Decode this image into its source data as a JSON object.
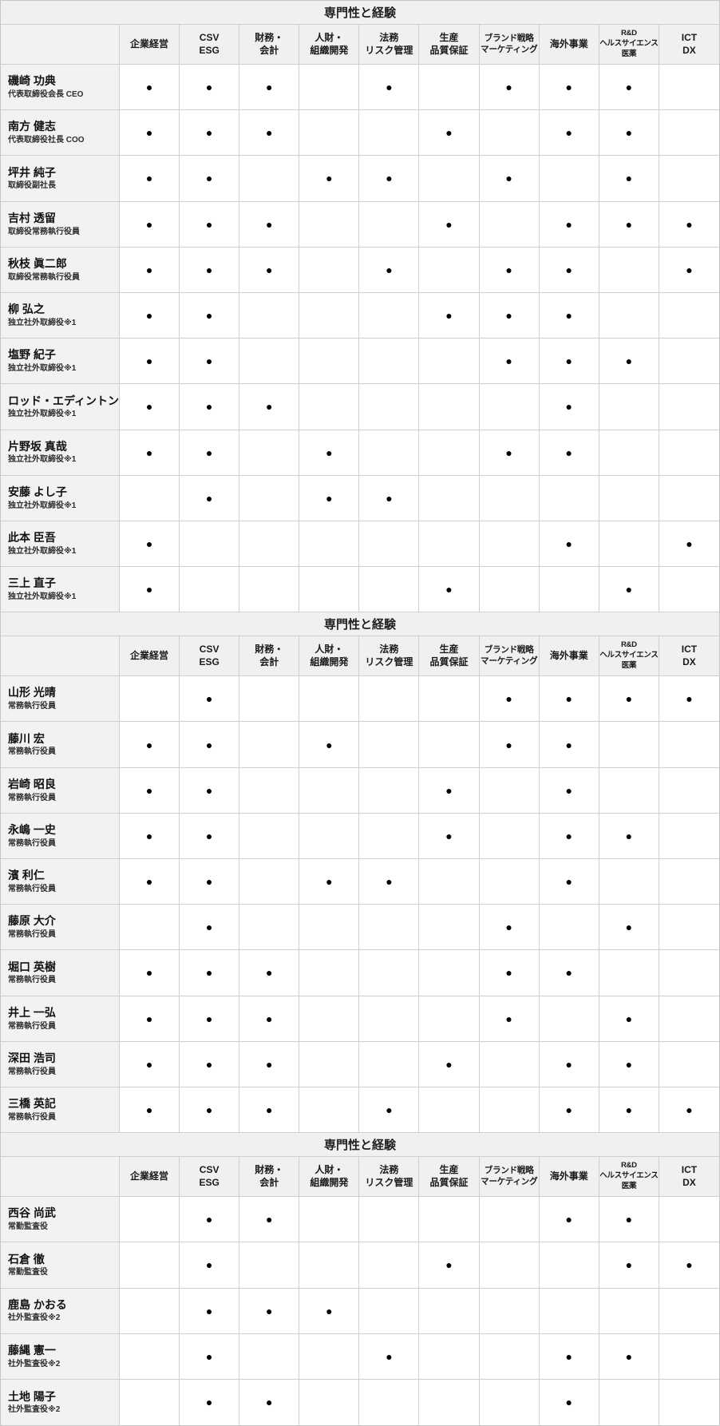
{
  "columns": [
    "企業経営",
    "CSV\nESG",
    "財務・\n会計",
    "人財・\n組織開発",
    "法務\nリスク管理",
    "生産\n品質保証",
    "ブランド戦略\nマーケティング",
    "海外事業",
    "R&D\nヘルスサイエンス\n医薬",
    "ICT\nDX"
  ],
  "icons": {
    "filled-dot": "●"
  },
  "colors": {
    "header_bg": "#f0f0f0",
    "name_cell_bg": "#f2f2f2",
    "border": "#cfcfcf",
    "dot": "#000000"
  },
  "sections": [
    {
      "title": "専門性と経験",
      "rows": [
        {
          "name": "磯崎 功典",
          "role": "代表取締役会長 CEO",
          "marks": [
            1,
            1,
            1,
            0,
            1,
            0,
            1,
            1,
            1,
            0
          ]
        },
        {
          "name": "南方 健志",
          "role": "代表取締役社長 COO",
          "marks": [
            1,
            1,
            1,
            0,
            0,
            1,
            0,
            1,
            1,
            0
          ]
        },
        {
          "name": "坪井 純子",
          "role": "取締役副社長",
          "marks": [
            1,
            1,
            0,
            1,
            1,
            0,
            1,
            0,
            1,
            0
          ]
        },
        {
          "name": "吉村 透留",
          "role": "取締役常務執行役員",
          "marks": [
            1,
            1,
            1,
            0,
            0,
            1,
            0,
            1,
            1,
            1
          ]
        },
        {
          "name": "秋枝 眞二郎",
          "role": "取締役常務執行役員",
          "marks": [
            1,
            1,
            1,
            0,
            1,
            0,
            1,
            1,
            0,
            1
          ]
        },
        {
          "name": "柳 弘之",
          "role": "独立社外取締役※1",
          "marks": [
            1,
            1,
            0,
            0,
            0,
            1,
            1,
            1,
            0,
            0
          ]
        },
        {
          "name": "塩野 紀子",
          "role": "独立社外取締役※1",
          "marks": [
            1,
            1,
            0,
            0,
            0,
            0,
            1,
            1,
            1,
            0
          ]
        },
        {
          "name": "ロッド・エディントン",
          "role": "独立社外取締役※1",
          "marks": [
            1,
            1,
            1,
            0,
            0,
            0,
            0,
            1,
            0,
            0
          ]
        },
        {
          "name": "片野坂 真哉",
          "role": "独立社外取締役※1",
          "marks": [
            1,
            1,
            0,
            1,
            0,
            0,
            1,
            1,
            0,
            0
          ]
        },
        {
          "name": "安藤 よし子",
          "role": "独立社外取締役※1",
          "marks": [
            0,
            1,
            0,
            1,
            1,
            0,
            0,
            0,
            0,
            0
          ]
        },
        {
          "name": "此本 臣吾",
          "role": "独立社外取締役※1",
          "marks": [
            1,
            0,
            0,
            0,
            0,
            0,
            0,
            1,
            0,
            1
          ]
        },
        {
          "name": "三上 直子",
          "role": "独立社外取締役※1",
          "marks": [
            1,
            0,
            0,
            0,
            0,
            1,
            0,
            0,
            1,
            0
          ]
        }
      ]
    },
    {
      "title": "専門性と経験",
      "rows": [
        {
          "name": "山形 光晴",
          "role": "常務執行役員",
          "marks": [
            0,
            1,
            0,
            0,
            0,
            0,
            1,
            1,
            1,
            1
          ]
        },
        {
          "name": "藤川 宏",
          "role": "常務執行役員",
          "marks": [
            1,
            1,
            0,
            1,
            0,
            0,
            1,
            1,
            0,
            0
          ]
        },
        {
          "name": "岩崎 昭良",
          "role": "常務執行役員",
          "marks": [
            1,
            1,
            0,
            0,
            0,
            1,
            0,
            1,
            0,
            0
          ]
        },
        {
          "name": "永嶋 一史",
          "role": "常務執行役員",
          "marks": [
            1,
            1,
            0,
            0,
            0,
            1,
            0,
            1,
            1,
            0
          ]
        },
        {
          "name": "濱 利仁",
          "role": "常務執行役員",
          "marks": [
            1,
            1,
            0,
            1,
            1,
            0,
            0,
            1,
            0,
            0
          ]
        },
        {
          "name": "藤原 大介",
          "role": "常務執行役員",
          "marks": [
            0,
            1,
            0,
            0,
            0,
            0,
            1,
            0,
            1,
            0
          ]
        },
        {
          "name": "堀口 英樹",
          "role": "常務執行役員",
          "marks": [
            1,
            1,
            1,
            0,
            0,
            0,
            1,
            1,
            0,
            0
          ]
        },
        {
          "name": "井上 一弘",
          "role": "常務執行役員",
          "marks": [
            1,
            1,
            1,
            0,
            0,
            0,
            1,
            0,
            1,
            0
          ]
        },
        {
          "name": "深田 浩司",
          "role": "常務執行役員",
          "marks": [
            1,
            1,
            1,
            0,
            0,
            1,
            0,
            1,
            1,
            0
          ]
        },
        {
          "name": "三橋 英記",
          "role": "常務執行役員",
          "marks": [
            1,
            1,
            1,
            0,
            1,
            0,
            0,
            1,
            1,
            1
          ]
        }
      ]
    },
    {
      "title": "専門性と経験",
      "rows": [
        {
          "name": "西谷 尚武",
          "role": "常勤監査役",
          "marks": [
            0,
            1,
            1,
            0,
            0,
            0,
            0,
            1,
            1,
            0
          ]
        },
        {
          "name": "石倉 徹",
          "role": "常勤監査役",
          "marks": [
            0,
            1,
            0,
            0,
            0,
            1,
            0,
            0,
            1,
            1
          ]
        },
        {
          "name": "鹿島 かおる",
          "role": "社外監査役※2",
          "marks": [
            0,
            1,
            1,
            1,
            0,
            0,
            0,
            0,
            0,
            0
          ]
        },
        {
          "name": "藤縄 憲一",
          "role": "社外監査役※2",
          "marks": [
            0,
            1,
            0,
            0,
            1,
            0,
            0,
            1,
            1,
            0
          ]
        },
        {
          "name": "土地 陽子",
          "role": "社外監査役※2",
          "marks": [
            0,
            1,
            1,
            0,
            0,
            0,
            0,
            1,
            0,
            0
          ]
        }
      ]
    }
  ]
}
